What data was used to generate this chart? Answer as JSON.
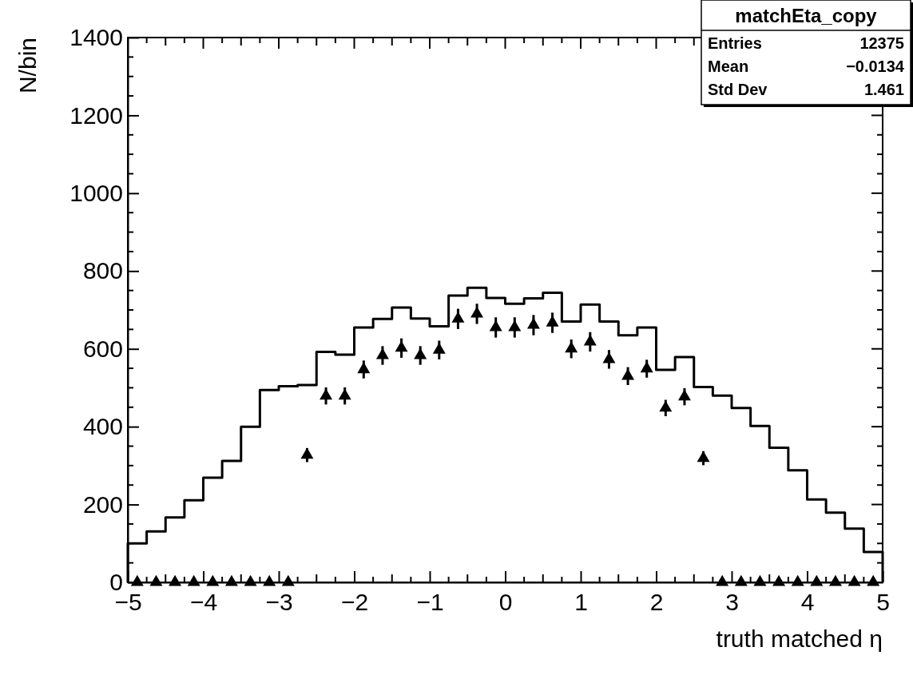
{
  "chart_data": {
    "type": "histogram",
    "xlabel": "truth matched η",
    "ylabel": "N/bin",
    "bins": [
      -5,
      -4.75,
      -4.5,
      -4.25,
      -4,
      -3.75,
      -3.5,
      -3.25,
      -3,
      -2.75,
      -2.5,
      -2.25,
      -2,
      -1.75,
      -1.5,
      -1.25,
      -1,
      -0.75,
      -0.5,
      -0.25,
      0,
      0.25,
      0.5,
      0.75,
      1,
      1.25,
      1.5,
      1.75,
      2,
      2.25,
      2.5,
      2.75,
      3,
      3.25,
      3.5,
      3.75,
      4,
      4.25,
      4.5,
      4.75,
      5
    ],
    "series": [
      {
        "color": "#000000",
        "line_style": "solid",
        "values": [
          100,
          131,
          167,
          211,
          269,
          312,
          400,
          494,
          504,
          507,
          592,
          585,
          655,
          677,
          706,
          678,
          658,
          737,
          757,
          731,
          716,
          730,
          744,
          670,
          714,
          670,
          635,
          655,
          546,
          579,
          502,
          480,
          448,
          402,
          346,
          288,
          213,
          179,
          138,
          78
        ]
      },
      {
        "type": "scatter",
        "color": "#000000",
        "marker": "triangle",
        "x": [
          -4.875,
          -4.625,
          -4.375,
          -4.125,
          -3.875,
          -3.625,
          -3.375,
          -3.125,
          -2.875,
          -2.625,
          -2.375,
          -2.125,
          -1.875,
          -1.625,
          -1.375,
          -1.125,
          -0.875,
          -0.625,
          -0.375,
          -0.125,
          0.125,
          0.375,
          0.625,
          0.875,
          1.125,
          1.375,
          1.625,
          1.875,
          2.125,
          2.375,
          2.625,
          2.875,
          3.125,
          3.375,
          3.625,
          3.875,
          4.125,
          4.375,
          4.625,
          4.875
        ],
        "values": [
          0,
          0,
          0,
          0,
          0,
          0,
          0,
          0,
          0,
          327,
          479,
          479,
          547,
          583,
          602,
          583,
          597,
          677,
          690,
          655,
          655,
          661,
          667,
          600,
          618,
          573,
          530,
          549,
          448,
          477,
          319,
          0,
          0,
          0,
          0,
          0,
          0,
          0,
          0,
          0
        ],
        "errors": [
          null,
          null,
          null,
          null,
          null,
          null,
          null,
          null,
          null,
          18,
          22,
          22,
          23,
          24,
          25,
          24,
          24,
          26,
          26,
          26,
          26,
          26,
          26,
          24,
          25,
          24,
          23,
          23,
          21,
          22,
          18,
          null,
          null,
          null,
          null,
          null,
          null,
          null,
          null,
          null
        ]
      }
    ],
    "xlim": [
      -5,
      5
    ],
    "xticks": [
      {
        "value": -5,
        "label": "−5"
      },
      {
        "value": -4,
        "label": "−4"
      },
      {
        "value": -3,
        "label": "−3"
      },
      {
        "value": -2,
        "label": "−2"
      },
      {
        "value": -1,
        "label": "−1"
      },
      0,
      1,
      2,
      3,
      4,
      5
    ],
    "ylim": [
      0,
      1400
    ],
    "yticks": [
      0,
      200,
      400,
      600,
      800,
      1000,
      1200,
      1400
    ],
    "annotations": [
      "matchEta_copy",
      "Entries",
      "12375",
      "Mean",
      "−0.0134",
      "Std Dev",
      "1.461"
    ],
    "grid": false
  }
}
